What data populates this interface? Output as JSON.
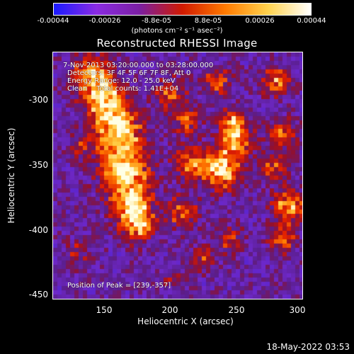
{
  "colorbar": {
    "ticks": [
      "-0.00044",
      "-0.00026",
      "-8.8e-05",
      "8.8e-05",
      "0.00026",
      "0.00044"
    ],
    "units": "(photons cm⁻² s⁻¹ asec⁻²)",
    "colors": [
      "#1a1aff",
      "#8a2be2",
      "#7b1fa2",
      "#d11a00",
      "#ff7a00",
      "#ffd24d",
      "#ffffff"
    ]
  },
  "chart_data": {
    "type": "heatmap",
    "title": "Reconstructed RHESSI Image",
    "xlabel": "Heliocentric X (arcsec)",
    "ylabel": "Heliocentric Y (arcsec)",
    "xlim": [
      110,
      300
    ],
    "ylim": [
      -455,
      -268
    ],
    "xticks": [
      "150",
      "200",
      "250",
      "300"
    ],
    "yticks": [
      "-300",
      "-350",
      "-400",
      "-450"
    ],
    "value_range": [
      -0.00044,
      0.00044
    ],
    "peak": [
      239,
      -357
    ],
    "annotations": [
      "7-Nov-2013 03:20:00.000 to 03:28:00.000",
      "Detectors: 3F 4F 5F 6F 7F 8F, Att 0",
      "Energy Range: 12.0 - 25.0 keV",
      "Clean    Total counts: 1.41E+04"
    ],
    "peak_label": "Position of Peak = [239,-357]"
  },
  "footer": "18-May-2022 03:53"
}
